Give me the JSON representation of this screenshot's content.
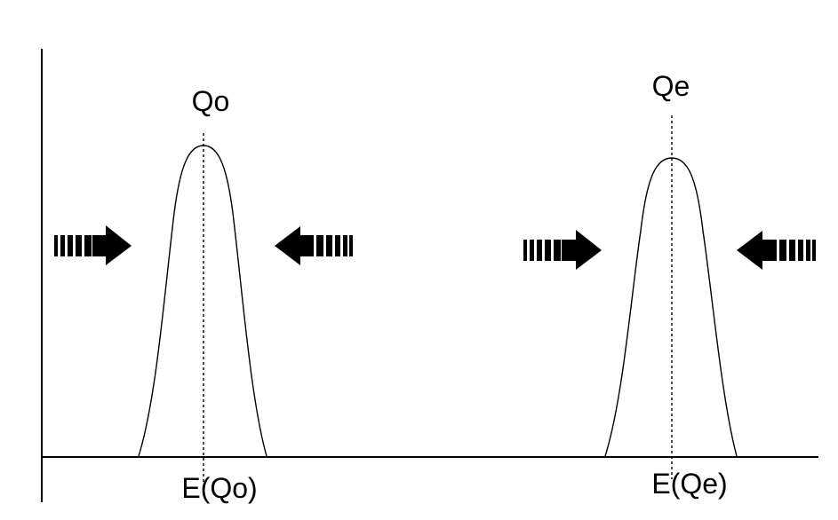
{
  "peaks": [
    {
      "top_label": "Qo",
      "bottom_label": "E(Qo)"
    },
    {
      "top_label": "Qe",
      "bottom_label": "E(Qe)"
    }
  ],
  "arrow_icon_names": [
    "striped-right-arrow-icon",
    "striped-left-arrow-icon"
  ],
  "colors": {
    "ink": "#000000",
    "background": "#ffffff"
  }
}
